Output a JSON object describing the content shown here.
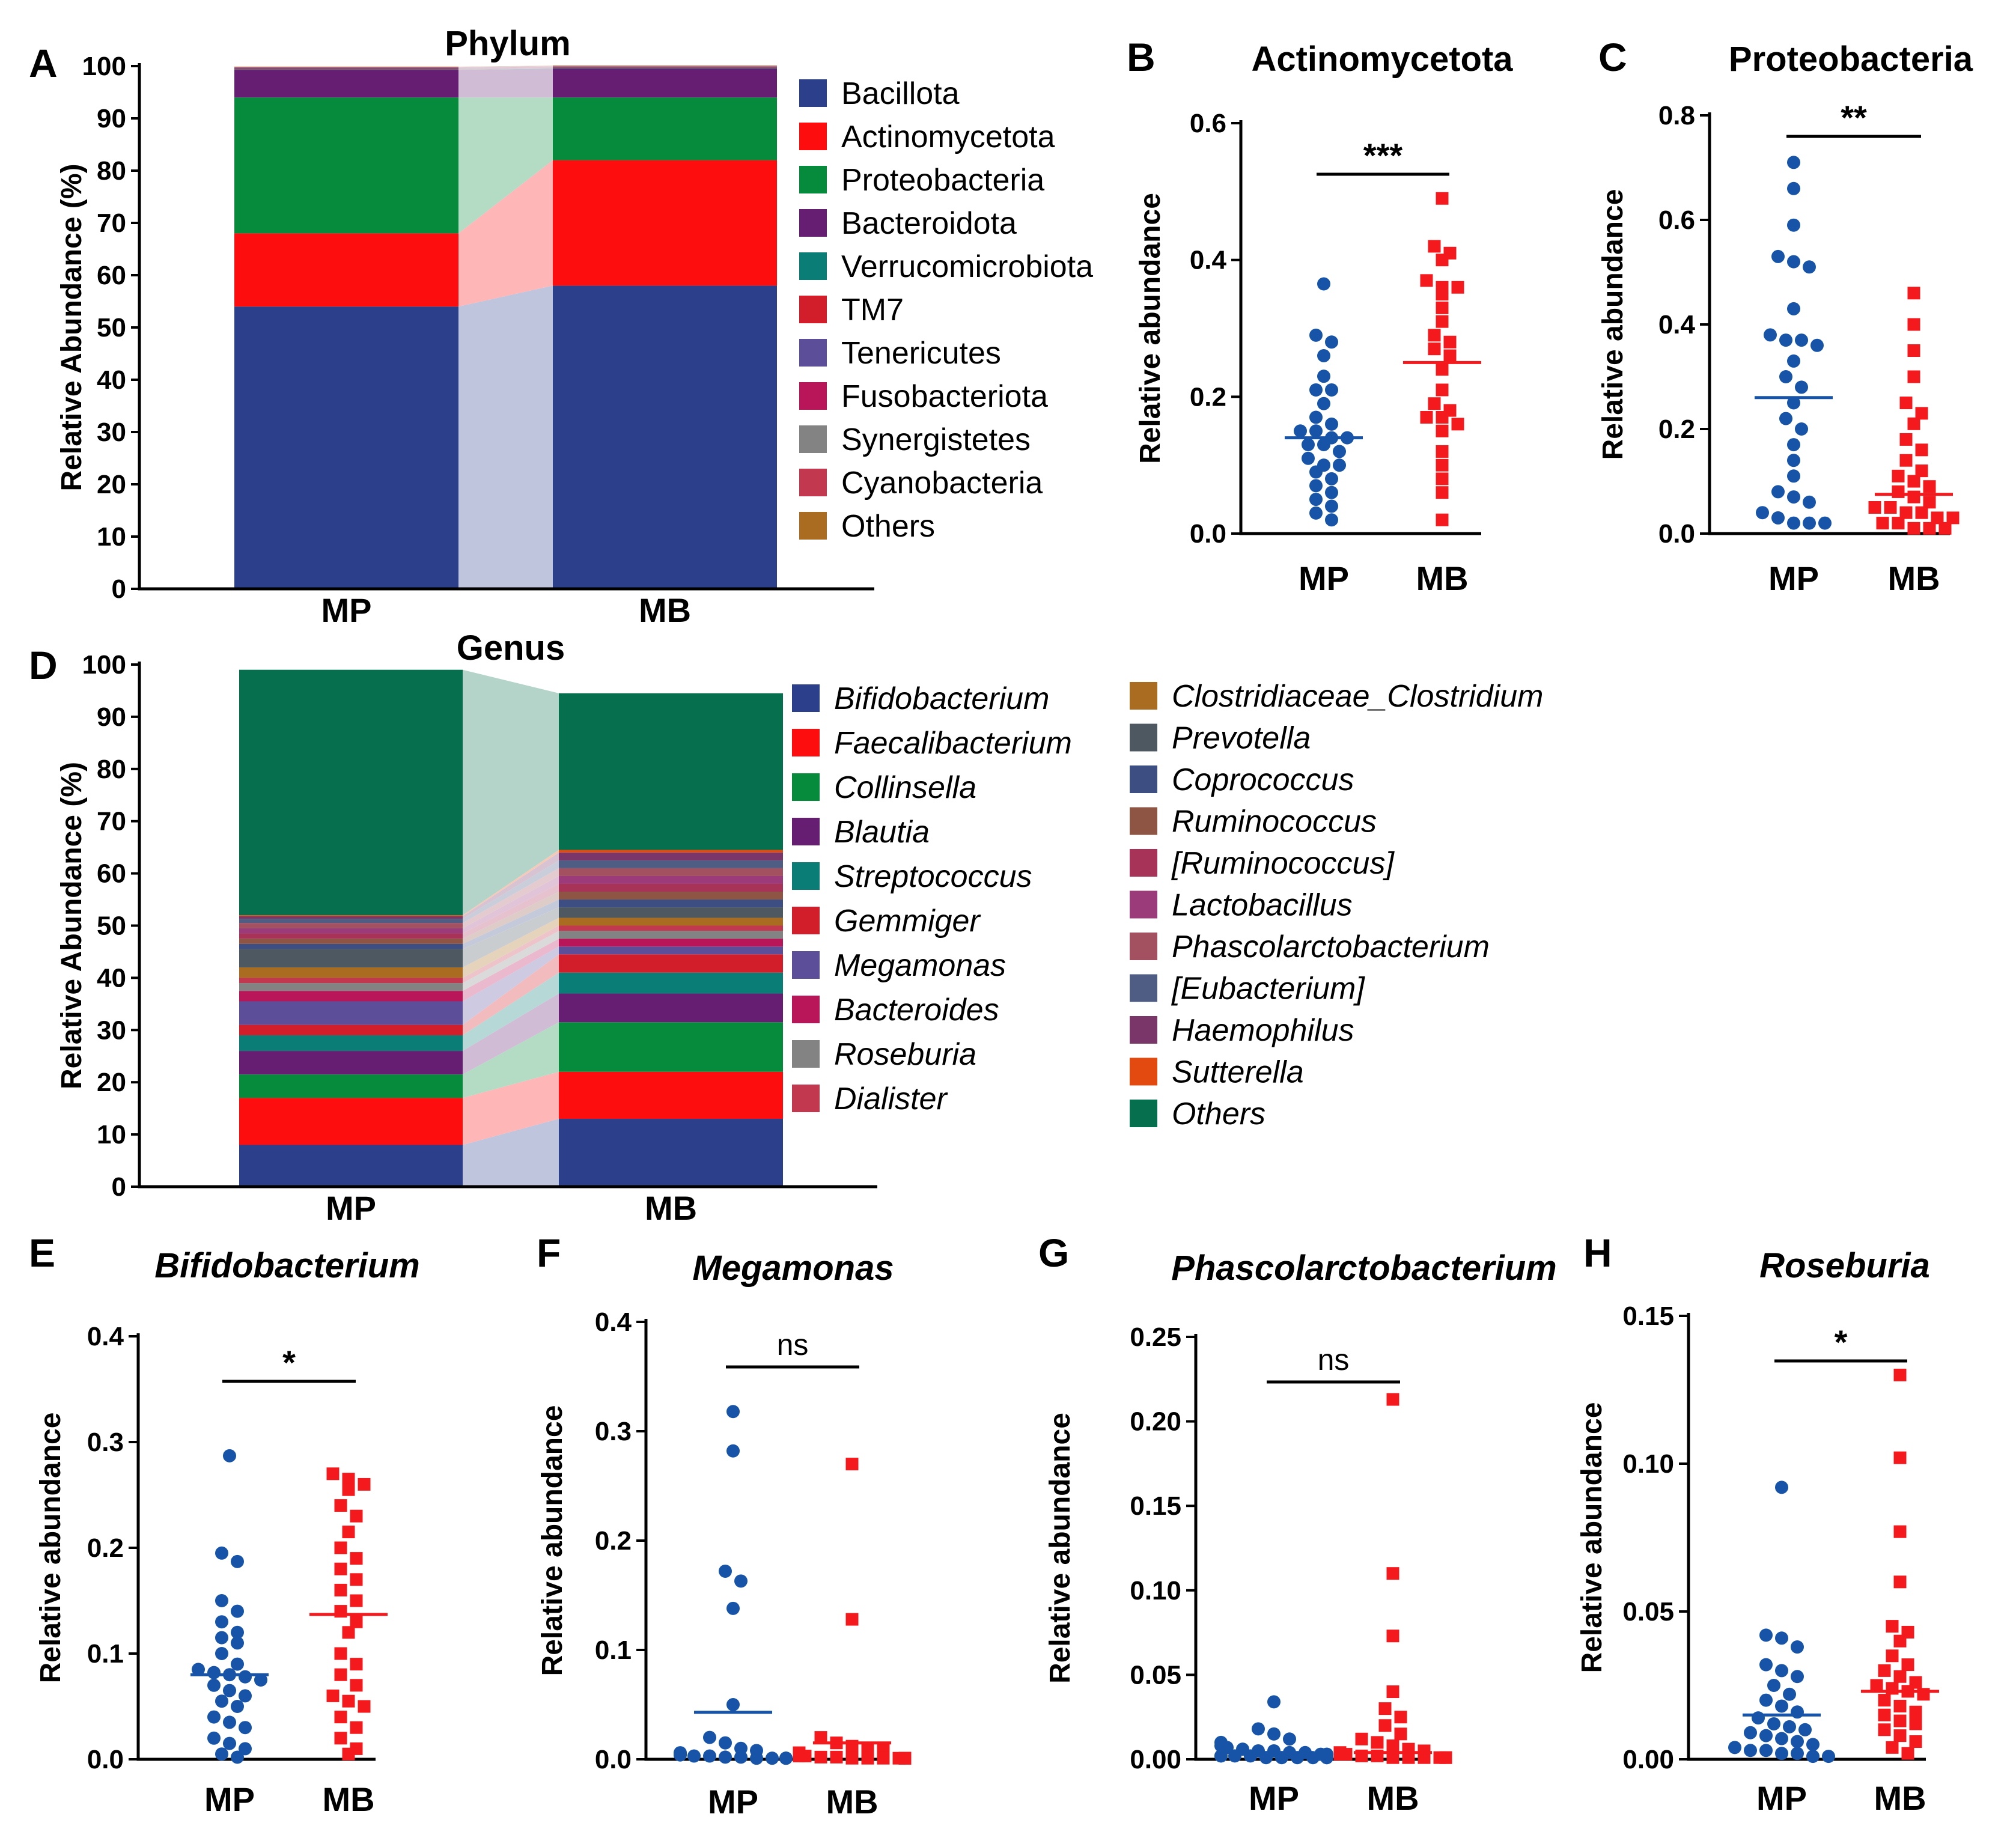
{
  "chart_data": [
    {
      "panel": "A",
      "type": "stacked-bar",
      "title": "Phylum",
      "ylabel": "Relative Abundance (%)",
      "ylim": [
        0,
        100
      ],
      "yticks": [
        "0",
        "10",
        "20",
        "30",
        "40",
        "50",
        "60",
        "70",
        "80",
        "90",
        "100"
      ],
      "categories": [
        "MP",
        "MB"
      ],
      "series": [
        {
          "name": "Bacillota",
          "color": "#2b3f8a",
          "values": [
            54.0,
            58.0
          ]
        },
        {
          "name": "Actinomycetota",
          "color": "#fd0d0d",
          "values": [
            14.0,
            24.0
          ]
        },
        {
          "name": "Proteobacteria",
          "color": "#068a3c",
          "values": [
            26.0,
            12.0
          ]
        },
        {
          "name": "Bacteroidota",
          "color": "#661e72",
          "values": [
            5.3,
            5.5
          ]
        },
        {
          "name": "Verrucomicrobiota",
          "color": "#0a7d77",
          "values": [
            0.1,
            0.1
          ]
        },
        {
          "name": "TM7",
          "color": "#d21e2b",
          "values": [
            0.1,
            0.1
          ]
        },
        {
          "name": "Tenericutes",
          "color": "#5d4e9a",
          "values": [
            0.1,
            0.1
          ]
        },
        {
          "name": "Fusobacteriota",
          "color": "#b81659",
          "values": [
            0.1,
            0.1
          ]
        },
        {
          "name": "Synergistetes",
          "color": "#838383",
          "values": [
            0.1,
            0.1
          ]
        },
        {
          "name": "Cyanobacteria",
          "color": "#c2394f",
          "values": [
            0.05,
            0.05
          ]
        },
        {
          "name": "Others",
          "color": "#aa6c20",
          "values": [
            0.05,
            0.05
          ]
        }
      ]
    },
    {
      "panel": "B",
      "type": "scatter",
      "title": "Actinomycetota",
      "title_italic": false,
      "ylabel": "Relative abundance",
      "ylim": [
        0,
        0.6
      ],
      "yticks": [
        0,
        0.2,
        0.4,
        0.6
      ],
      "ytick_labels": [
        "0.0",
        "0.2",
        "0.4",
        "0.6"
      ],
      "significance": "***",
      "groups": [
        {
          "name": "MP",
          "color": "#1754a7",
          "marker": "circle",
          "mean": 0.14,
          "values": [
            0.365,
            0.29,
            0.28,
            0.26,
            0.23,
            0.21,
            0.21,
            0.19,
            0.17,
            0.16,
            0.15,
            0.15,
            0.14,
            0.14,
            0.13,
            0.13,
            0.12,
            0.11,
            0.1,
            0.1,
            0.09,
            0.08,
            0.07,
            0.06,
            0.05,
            0.04,
            0.03,
            0.02
          ]
        },
        {
          "name": "MB",
          "color": "#f3191c",
          "marker": "square",
          "mean": 0.25,
          "values": [
            0.49,
            0.42,
            0.41,
            0.4,
            0.37,
            0.36,
            0.36,
            0.35,
            0.33,
            0.31,
            0.29,
            0.28,
            0.27,
            0.26,
            0.24,
            0.21,
            0.19,
            0.18,
            0.17,
            0.17,
            0.16,
            0.15,
            0.12,
            0.1,
            0.08,
            0.06,
            0.02
          ]
        }
      ]
    },
    {
      "panel": "C",
      "type": "scatter",
      "title": "Proteobacteria",
      "title_italic": false,
      "ylabel": "Relative abundance",
      "ylim": [
        0,
        0.8
      ],
      "yticks": [
        0,
        0.2,
        0.4,
        0.6,
        0.8
      ],
      "ytick_labels": [
        "0.0",
        "0.2",
        "0.4",
        "0.6",
        "0.8"
      ],
      "significance": "**",
      "groups": [
        {
          "name": "MP",
          "color": "#1754a7",
          "marker": "circle",
          "mean": 0.26,
          "values": [
            0.71,
            0.66,
            0.59,
            0.53,
            0.52,
            0.51,
            0.43,
            0.38,
            0.37,
            0.37,
            0.36,
            0.33,
            0.3,
            0.28,
            0.25,
            0.22,
            0.2,
            0.17,
            0.14,
            0.11,
            0.08,
            0.07,
            0.06,
            0.04,
            0.03,
            0.02,
            0.02,
            0.02
          ]
        },
        {
          "name": "MB",
          "color": "#f3191c",
          "marker": "square",
          "mean": 0.075,
          "values": [
            0.46,
            0.4,
            0.35,
            0.3,
            0.25,
            0.23,
            0.21,
            0.18,
            0.16,
            0.14,
            0.12,
            0.11,
            0.1,
            0.09,
            0.08,
            0.07,
            0.06,
            0.05,
            0.05,
            0.04,
            0.04,
            0.03,
            0.03,
            0.02,
            0.02,
            0.01,
            0.01,
            0.01
          ]
        }
      ]
    },
    {
      "panel": "D",
      "type": "stacked-bar",
      "title": "Genus",
      "ylabel": "Relative Abundance (%)",
      "ylim": [
        0,
        100
      ],
      "yticks": [
        "0",
        "10",
        "20",
        "30",
        "40",
        "50",
        "60",
        "70",
        "80",
        "90",
        "100"
      ],
      "categories": [
        "MP",
        "MB"
      ],
      "series": [
        {
          "name": "Bifidobacterium",
          "color": "#2b3f8a",
          "values": [
            8.0,
            13.0
          ]
        },
        {
          "name": "Faecalibacterium",
          "color": "#fd0d0d",
          "values": [
            9.0,
            9.0
          ]
        },
        {
          "name": "Collinsella",
          "color": "#068a3c",
          "values": [
            4.5,
            9.5
          ]
        },
        {
          "name": "Blautia",
          "color": "#661e72",
          "values": [
            4.5,
            5.5
          ]
        },
        {
          "name": "Streptococcus",
          "color": "#0a7d77",
          "values": [
            3.0,
            4.0
          ]
        },
        {
          "name": "Gemmiger",
          "color": "#d21e2b",
          "values": [
            2.0,
            3.5
          ]
        },
        {
          "name": "Megamonas",
          "color": "#5d4e9a",
          "values": [
            4.5,
            1.5
          ]
        },
        {
          "name": "Bacteroides",
          "color": "#b81659",
          "values": [
            2.0,
            1.5
          ]
        },
        {
          "name": "Roseburia",
          "color": "#838383",
          "values": [
            1.5,
            1.5
          ]
        },
        {
          "name": "Dialister",
          "color": "#c2394f",
          "values": [
            1.0,
            1.0
          ]
        },
        {
          "name": "Clostridiaceae_Clostridium",
          "color": "#aa6c20",
          "values": [
            2.0,
            1.5
          ]
        },
        {
          "name": "Prevotella",
          "color": "#4d5860",
          "values": [
            3.5,
            2.0
          ]
        },
        {
          "name": "Coprococcus",
          "color": "#3d4f82",
          "values": [
            1.0,
            1.5
          ]
        },
        {
          "name": "Ruminococcus",
          "color": "#8e5545",
          "values": [
            1.0,
            1.5
          ]
        },
        {
          "name": "[Ruminococcus]",
          "color": "#a83358",
          "values": [
            1.0,
            1.5
          ]
        },
        {
          "name": "Lactobacillus",
          "color": "#9c3b7a",
          "values": [
            1.0,
            1.5
          ]
        },
        {
          "name": "Phascolarctobacterium",
          "color": "#a35060",
          "values": [
            1.0,
            1.5
          ]
        },
        {
          "name": "[Eubacterium]",
          "color": "#4f5d85",
          "values": [
            0.8,
            1.5
          ]
        },
        {
          "name": "Haemophilus",
          "color": "#7a3668",
          "values": [
            0.5,
            1.5
          ]
        },
        {
          "name": "Sutterella",
          "color": "#e24a10",
          "values": [
            0.2,
            0.5
          ]
        },
        {
          "name": "Others",
          "color": "#066f4e",
          "values": [
            47.0,
            30.0
          ]
        }
      ]
    },
    {
      "panel": "E",
      "type": "scatter",
      "title": "Bifidobacterium",
      "title_italic": true,
      "ylabel": "Relative abundance",
      "ylim": [
        0,
        0.4
      ],
      "yticks": [
        0,
        0.1,
        0.2,
        0.3,
        0.4
      ],
      "ytick_labels": [
        "0.0",
        "0.1",
        "0.2",
        "0.3",
        "0.4"
      ],
      "significance": "*",
      "groups": [
        {
          "name": "MP",
          "color": "#1754a7",
          "marker": "circle",
          "mean": 0.08,
          "values": [
            0.287,
            0.195,
            0.187,
            0.15,
            0.14,
            0.13,
            0.12,
            0.115,
            0.11,
            0.1,
            0.09,
            0.085,
            0.082,
            0.08,
            0.078,
            0.075,
            0.07,
            0.065,
            0.06,
            0.055,
            0.05,
            0.04,
            0.035,
            0.03,
            0.02,
            0.015,
            0.01,
            0.005,
            0.002
          ]
        },
        {
          "name": "MB",
          "color": "#f3191c",
          "marker": "square",
          "mean": 0.137,
          "values": [
            0.27,
            0.265,
            0.26,
            0.255,
            0.24,
            0.23,
            0.215,
            0.2,
            0.19,
            0.18,
            0.17,
            0.16,
            0.15,
            0.14,
            0.13,
            0.12,
            0.1,
            0.09,
            0.08,
            0.07,
            0.06,
            0.055,
            0.05,
            0.04,
            0.03,
            0.02,
            0.01,
            0.005
          ]
        }
      ]
    },
    {
      "panel": "F",
      "type": "scatter",
      "title": "Megamonas",
      "title_italic": true,
      "ylabel": "Relative abundance",
      "ylim": [
        0,
        0.4
      ],
      "yticks": [
        0,
        0.1,
        0.2,
        0.3,
        0.4
      ],
      "ytick_labels": [
        "0.0",
        "0.1",
        "0.2",
        "0.3",
        "0.4"
      ],
      "significance": "ns",
      "groups": [
        {
          "name": "MP",
          "color": "#1754a7",
          "marker": "circle",
          "mean": 0.043,
          "values": [
            0.318,
            0.282,
            0.172,
            0.163,
            0.138,
            0.05,
            0.02,
            0.015,
            0.01,
            0.008,
            0.006,
            0.005,
            0.004,
            0.003,
            0.003,
            0.002,
            0.002,
            0.001,
            0.001,
            0.001,
            0.001,
            0.001
          ]
        },
        {
          "name": "MB",
          "color": "#f3191c",
          "marker": "square",
          "mean": 0.015,
          "values": [
            0.27,
            0.128,
            0.02,
            0.015,
            0.012,
            0.01,
            0.008,
            0.006,
            0.005,
            0.004,
            0.003,
            0.003,
            0.002,
            0.002,
            0.001,
            0.001,
            0.001,
            0.001,
            0.001,
            0.001,
            0.001,
            0.001
          ]
        }
      ]
    },
    {
      "panel": "G",
      "type": "scatter",
      "title": "Phascolarctobacterium",
      "title_italic": true,
      "ylabel": "Relative abundance",
      "ylim": [
        0,
        0.25
      ],
      "yticks": [
        0,
        0.05,
        0.1,
        0.15,
        0.2,
        0.25
      ],
      "ytick_labels": [
        "0.00",
        "0.05",
        "0.10",
        "0.15",
        "0.20",
        "0.25"
      ],
      "significance": "ns",
      "groups": [
        {
          "name": "MP",
          "color": "#1754a7",
          "marker": "circle",
          "mean": 0.004,
          "values": [
            0.034,
            0.018,
            0.015,
            0.012,
            0.01,
            0.008,
            0.007,
            0.006,
            0.005,
            0.005,
            0.004,
            0.004,
            0.003,
            0.003,
            0.003,
            0.002,
            0.002,
            0.002,
            0.002,
            0.001,
            0.001,
            0.001,
            0.001,
            0.001,
            0.001
          ]
        },
        {
          "name": "MB",
          "color": "#f3191c",
          "marker": "square",
          "mean": 0.004,
          "values": [
            0.213,
            0.11,
            0.073,
            0.04,
            0.03,
            0.025,
            0.02,
            0.015,
            0.012,
            0.01,
            0.008,
            0.006,
            0.005,
            0.004,
            0.003,
            0.003,
            0.002,
            0.002,
            0.001,
            0.001,
            0.001,
            0.001,
            0.001,
            0.001
          ]
        }
      ]
    },
    {
      "panel": "H",
      "type": "scatter",
      "title": "Roseburia",
      "title_italic": true,
      "ylabel": "Relative abundance",
      "ylim": [
        0,
        0.15
      ],
      "yticks": [
        0,
        0.05,
        0.1,
        0.15
      ],
      "ytick_labels": [
        "0.00",
        "0.05",
        "0.10",
        "0.15"
      ],
      "significance": "*",
      "groups": [
        {
          "name": "MP",
          "color": "#1754a7",
          "marker": "circle",
          "mean": 0.015,
          "values": [
            0.092,
            0.042,
            0.041,
            0.038,
            0.032,
            0.03,
            0.028,
            0.025,
            0.022,
            0.02,
            0.018,
            0.016,
            0.014,
            0.012,
            0.011,
            0.01,
            0.009,
            0.008,
            0.007,
            0.006,
            0.005,
            0.004,
            0.003,
            0.003,
            0.002,
            0.002,
            0.001,
            0.001
          ]
        },
        {
          "name": "MB",
          "color": "#f3191c",
          "marker": "square",
          "mean": 0.023,
          "values": [
            0.13,
            0.102,
            0.077,
            0.06,
            0.045,
            0.043,
            0.04,
            0.035,
            0.032,
            0.03,
            0.028,
            0.026,
            0.025,
            0.024,
            0.023,
            0.022,
            0.02,
            0.018,
            0.016,
            0.015,
            0.013,
            0.012,
            0.01,
            0.008,
            0.006,
            0.004,
            0.002
          ]
        }
      ]
    }
  ]
}
